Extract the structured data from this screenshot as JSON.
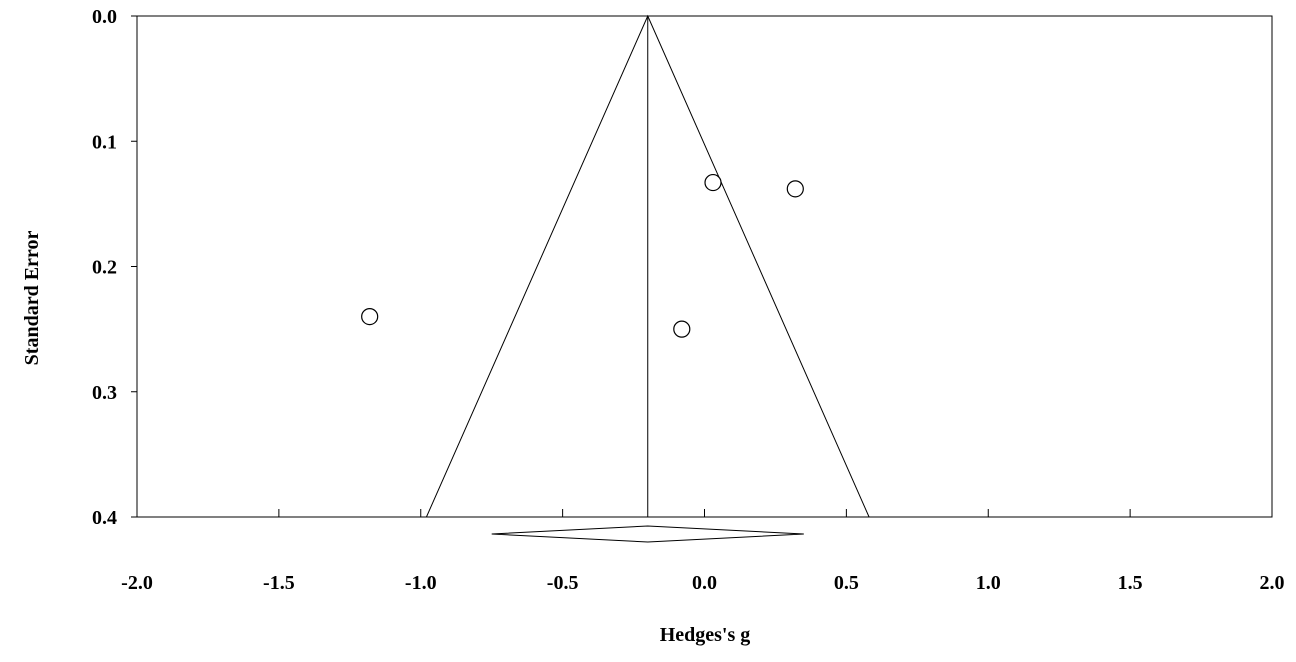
{
  "chart_data": {
    "type": "scatter",
    "x_label": "Hedges's g",
    "y_label": "Standard Error",
    "x": [
      -1.18,
      0.03,
      0.32,
      -0.08
    ],
    "values": [
      0.24,
      0.133,
      0.138,
      0.25
    ],
    "color": "#000000",
    "xlim": [
      -2,
      2
    ],
    "xticks": [
      {
        "value": -2,
        "label": "-2.0"
      },
      -1.5,
      {
        "value": -1,
        "label": "-1.0"
      },
      -0.5,
      {
        "value": 0,
        "label": "0.0"
      },
      0.5,
      {
        "value": 1,
        "label": "1.0"
      },
      1.5,
      {
        "value": 2,
        "label": "2.0"
      }
    ],
    "ylim": [
      0,
      0.4
    ],
    "yticks": [
      {
        "value": 0,
        "label": "0.0"
      },
      0.1,
      0.2,
      0.3,
      0.4
    ],
    "y_reversed": true,
    "summary": {
      "estimate": -0.2,
      "ci": [
        -0.75,
        0.35
      ]
    },
    "funnel_bottom": [
      -0.98,
      0.58
    ]
  }
}
